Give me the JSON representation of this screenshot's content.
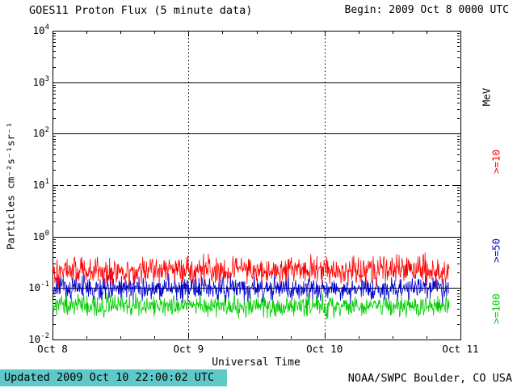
{
  "header": {
    "title": "GOES11 Proton Flux (5 minute data)",
    "begin_label": "Begin: 2009 Oct 8 0000 UTC"
  },
  "footer": {
    "updated_label": "Updated 2009 Oct 10 22:00:02 UTC",
    "updated_bg": "#5fc9c9",
    "credit_label": "NOAA/SWPC Boulder, CO USA"
  },
  "chart_data": {
    "type": "line",
    "title": "GOES11 Proton Flux (5 minute data)",
    "xlabel": "Universal Time",
    "ylabel": "Particles cm⁻²s⁻¹sr⁻¹",
    "right_axis_label": "MeV",
    "y_scale": "log10",
    "y_log_min": -2,
    "y_log_max": 4,
    "y_tick_exponents": [
      4,
      3,
      2,
      1,
      0,
      -1,
      -2
    ],
    "x_tick_labels": [
      "Oct 8",
      "Oct 9",
      "Oct 10",
      "Oct 11"
    ],
    "x_span_days": 3,
    "cadence_minutes": 5,
    "data_end_day_fraction": 2.9167,
    "grid": {
      "solid_decades": [
        3,
        2,
        0,
        -1
      ],
      "dashed_decades": [
        1
      ],
      "day_boundary_dotted_lines": [
        1,
        2
      ]
    },
    "series": [
      {
        "name": ">=10",
        "unit": "MeV",
        "color": "#ff0000",
        "baseline_flux": 0.22,
        "log10_sigma": 0.135,
        "flux_range_approx": [
          0.09,
          0.55
        ],
        "seed": 101
      },
      {
        "name": ">=50",
        "unit": "MeV",
        "color": "#0000cc",
        "baseline_flux": 0.1,
        "log10_sigma": 0.115,
        "flux_range_approx": [
          0.04,
          0.25
        ],
        "seed": 202
      },
      {
        "name": ">=100",
        "unit": "MeV",
        "color": "#00cc00",
        "baseline_flux": 0.045,
        "log10_sigma": 0.1,
        "flux_range_approx": [
          0.025,
          0.1
        ],
        "seed": 303
      }
    ]
  }
}
